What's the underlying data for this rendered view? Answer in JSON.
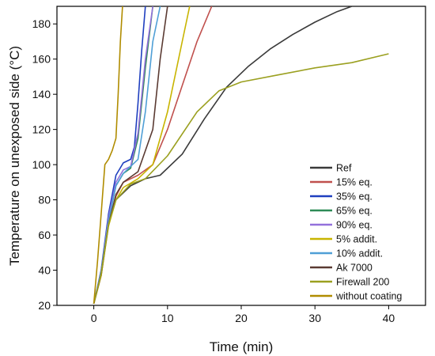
{
  "chart_data": {
    "type": "line",
    "title": "",
    "xlabel": "Time (min)",
    "ylabel": "Temperature on unexposed side (°C)",
    "xlim": [
      -5,
      45
    ],
    "ylim": [
      20,
      190
    ],
    "xticks": [
      0,
      10,
      20,
      30,
      40
    ],
    "yticks": [
      20,
      40,
      60,
      80,
      100,
      120,
      140,
      160,
      180
    ],
    "legend_position": "bottom-right",
    "grid": false,
    "series": [
      {
        "name": "Ref",
        "color": "#3a3a3a",
        "x": [
          0,
          1,
          2,
          3,
          5,
          7,
          9,
          12,
          15,
          18,
          21,
          24,
          27,
          30,
          33,
          35
        ],
        "y": [
          21,
          37,
          66,
          80,
          88,
          92,
          94,
          106,
          126,
          144,
          156,
          166,
          174,
          181,
          187,
          190
        ]
      },
      {
        "name": "15% eq.",
        "color": "#c0504d",
        "x": [
          0,
          1,
          2,
          3,
          4,
          6,
          8,
          10,
          12,
          14,
          16
        ],
        "y": [
          21,
          37,
          66,
          82,
          90,
          94,
          100,
          120,
          145,
          170,
          190
        ]
      },
      {
        "name": "35% eq.",
        "color": "#1f3fbf",
        "x": [
          0,
          1,
          2,
          3,
          4,
          5,
          5.5,
          6,
          6.5,
          7
        ],
        "y": [
          21,
          40,
          72,
          94,
          101,
          103,
          110,
          135,
          165,
          190
        ]
      },
      {
        "name": "65% eq.",
        "color": "#2e8b57",
        "x": [
          0,
          1,
          2,
          3,
          4,
          5,
          6,
          7,
          8
        ],
        "y": [
          21,
          38,
          68,
          88,
          95,
          98,
          115,
          155,
          190
        ]
      },
      {
        "name": "90% eq.",
        "color": "#9370db",
        "x": [
          0,
          1,
          2,
          3,
          4,
          5,
          6,
          7,
          8
        ],
        "y": [
          21,
          39,
          70,
          90,
          97,
          99,
          118,
          160,
          190
        ]
      },
      {
        "name": "5% addit.",
        "color": "#c8b400",
        "x": [
          0,
          1,
          2,
          3,
          4,
          6,
          8,
          10,
          12,
          13
        ],
        "y": [
          21,
          37,
          65,
          80,
          87,
          92,
          100,
          130,
          170,
          190
        ]
      },
      {
        "name": "10% addit.",
        "color": "#4f9fd6",
        "x": [
          0,
          1,
          2,
          3,
          4,
          5,
          6,
          7,
          8,
          9
        ],
        "y": [
          21,
          39,
          68,
          88,
          95,
          99,
          103,
          130,
          170,
          190
        ]
      },
      {
        "name": "Ak 7000",
        "color": "#5a3a32",
        "x": [
          0,
          1,
          2,
          3,
          4,
          6,
          8,
          9,
          10
        ],
        "y": [
          21,
          38,
          66,
          83,
          90,
          96,
          120,
          160,
          190
        ]
      },
      {
        "name": "Firewall 200",
        "color": "#9ba020",
        "x": [
          0,
          1,
          2,
          3,
          5,
          7,
          10,
          14,
          17,
          20,
          25,
          30,
          35,
          40
        ],
        "y": [
          21,
          38,
          66,
          80,
          89,
          92,
          105,
          130,
          142,
          147,
          151,
          155,
          158,
          163
        ]
      },
      {
        "name": "without coating",
        "color": "#b08c00",
        "x": [
          0,
          0.5,
          1,
          1.5,
          2,
          2.5,
          3,
          3.3,
          3.6,
          3.9
        ],
        "y": [
          21,
          45,
          72,
          100,
          103,
          108,
          115,
          140,
          170,
          190
        ]
      }
    ]
  }
}
